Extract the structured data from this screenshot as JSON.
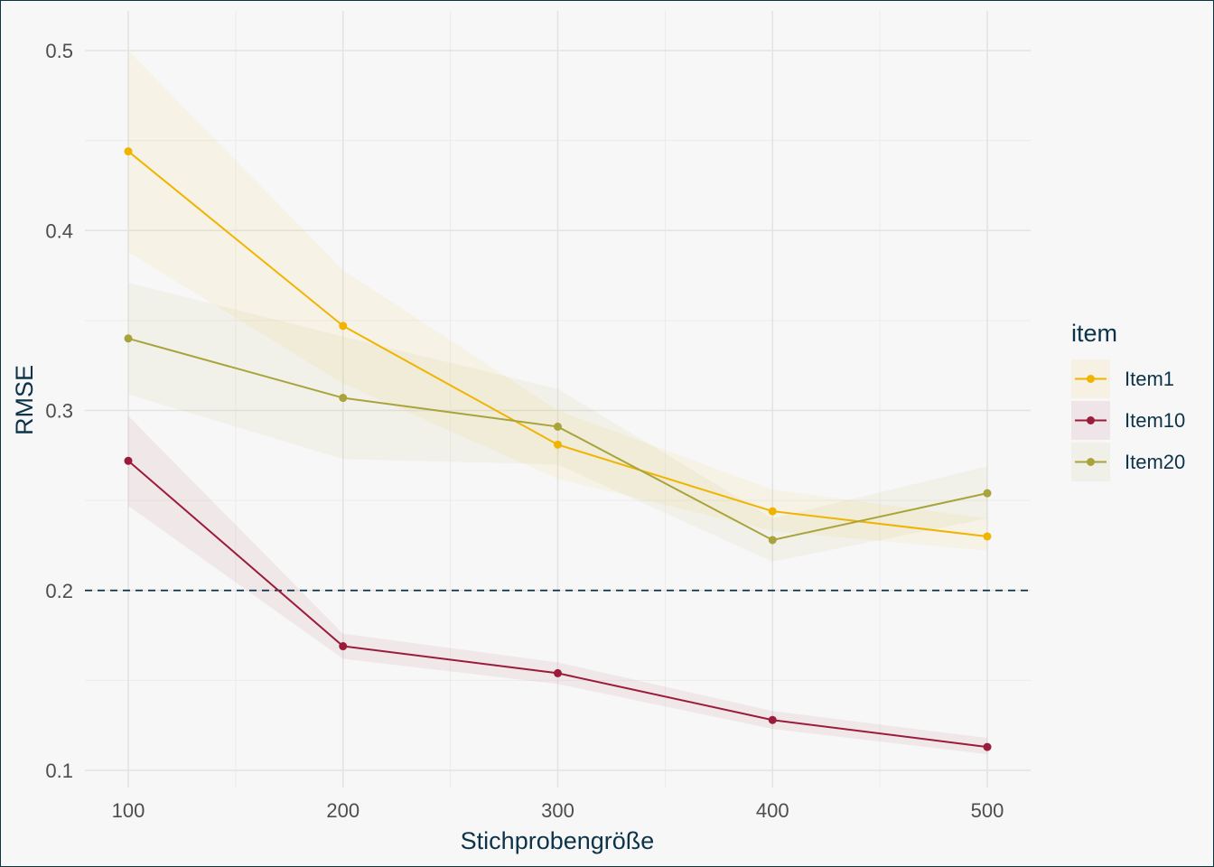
{
  "chart_data": {
    "type": "line",
    "title": "",
    "xlabel": "Stichprobengröße",
    "ylabel": "RMSE",
    "x": [
      100,
      200,
      300,
      400,
      500
    ],
    "xticks": [
      100,
      200,
      300,
      400,
      500
    ],
    "yticks": [
      0.1,
      0.2,
      0.3,
      0.4,
      0.5
    ],
    "xlim": [
      92,
      520
    ],
    "ylim": [
      0.09,
      0.52
    ],
    "grid": true,
    "reference_line": {
      "y": 0.2,
      "style": "dashed",
      "color": "#0d3349"
    },
    "legend": {
      "title": "item",
      "position": "right"
    },
    "series": [
      {
        "name": "Item1",
        "color": "#f0b400",
        "values": [
          0.444,
          0.347,
          0.281,
          0.244,
          0.23
        ],
        "lower": [
          0.388,
          0.315,
          0.262,
          0.233,
          0.222
        ],
        "upper": [
          0.5,
          0.378,
          0.3,
          0.256,
          0.24
        ]
      },
      {
        "name": "Item10",
        "color": "#9b1b3b",
        "values": [
          0.272,
          0.169,
          0.154,
          0.128,
          0.113
        ],
        "lower": [
          0.247,
          0.162,
          0.148,
          0.123,
          0.109
        ],
        "upper": [
          0.297,
          0.176,
          0.16,
          0.133,
          0.118
        ]
      },
      {
        "name": "Item20",
        "color": "#a8a33a",
        "values": [
          0.34,
          0.307,
          0.291,
          0.228,
          0.254
        ],
        "lower": [
          0.309,
          0.273,
          0.27,
          0.216,
          0.24
        ],
        "upper": [
          0.371,
          0.341,
          0.312,
          0.24,
          0.269
        ]
      }
    ]
  }
}
